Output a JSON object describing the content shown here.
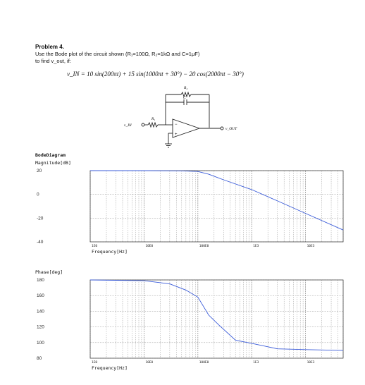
{
  "problem": {
    "title": "Problem 4.",
    "line1": "Use the Bode plot of the circuit shown (R₁=100Ω, R₂=1kΩ and C=1μF)",
    "line2": "to find v_out, if:",
    "equation": "v_IN = 10 sin(200πt) + 15 sin(1000πt + 30°) − 20 cos(2000πt − 30°)"
  },
  "circuit": {
    "r1_label": "R₁",
    "r2_label": "R₂",
    "c_label": "C",
    "vin_label": "v_IN",
    "vout_label": "v_OUT",
    "minus_label": "−",
    "plus_label": "+"
  },
  "bode": {
    "title": "BodeDiagram",
    "magnitude_label": "Magnitude[dB]",
    "phase_label": "Phase[deg]",
    "xlabel": "Frequency[Hz]",
    "x_ticks": [
      "1E0",
      "10E0",
      "100E0",
      "1E3",
      "10E3"
    ],
    "mag_ticks": [
      "20",
      "0",
      "-20",
      "-40"
    ],
    "phase_ticks": [
      "180",
      "160",
      "140",
      "120",
      "100",
      "80"
    ]
  },
  "chart_data": [
    {
      "type": "line",
      "title": "",
      "ylabel": "Magnitude[dB]",
      "xlabel": "Frequency[Hz]",
      "x_scale": "log",
      "xlim": [
        1,
        50000
      ],
      "ylim": [
        -40,
        20
      ],
      "grid": true,
      "series": [
        {
          "x": [
            1,
            10,
            50,
            100,
            159,
            300,
            1000,
            3000,
            10000,
            50000
          ],
          "y": [
            20,
            20,
            19.8,
            19.3,
            17,
            12.3,
            4,
            -5.5,
            -16,
            -30
          ]
        }
      ]
    },
    {
      "type": "line",
      "title": "",
      "ylabel": "Phase[deg]",
      "xlabel": "Frequency[Hz]",
      "x_scale": "log",
      "xlim": [
        1,
        50000
      ],
      "ylim": [
        80,
        180
      ],
      "grid": true,
      "series": [
        {
          "x": [
            1,
            10,
            30,
            60,
            100,
            159,
            250,
            500,
            1000,
            3000,
            10000,
            50000
          ],
          "y": [
            180,
            179,
            175,
            167,
            158,
            135,
            122,
            103,
            99,
            92,
            91,
            90
          ]
        }
      ]
    }
  ],
  "colors": {
    "curve": "#3a5bd9",
    "grid": "#9a9a9a",
    "frame": "#444444"
  }
}
